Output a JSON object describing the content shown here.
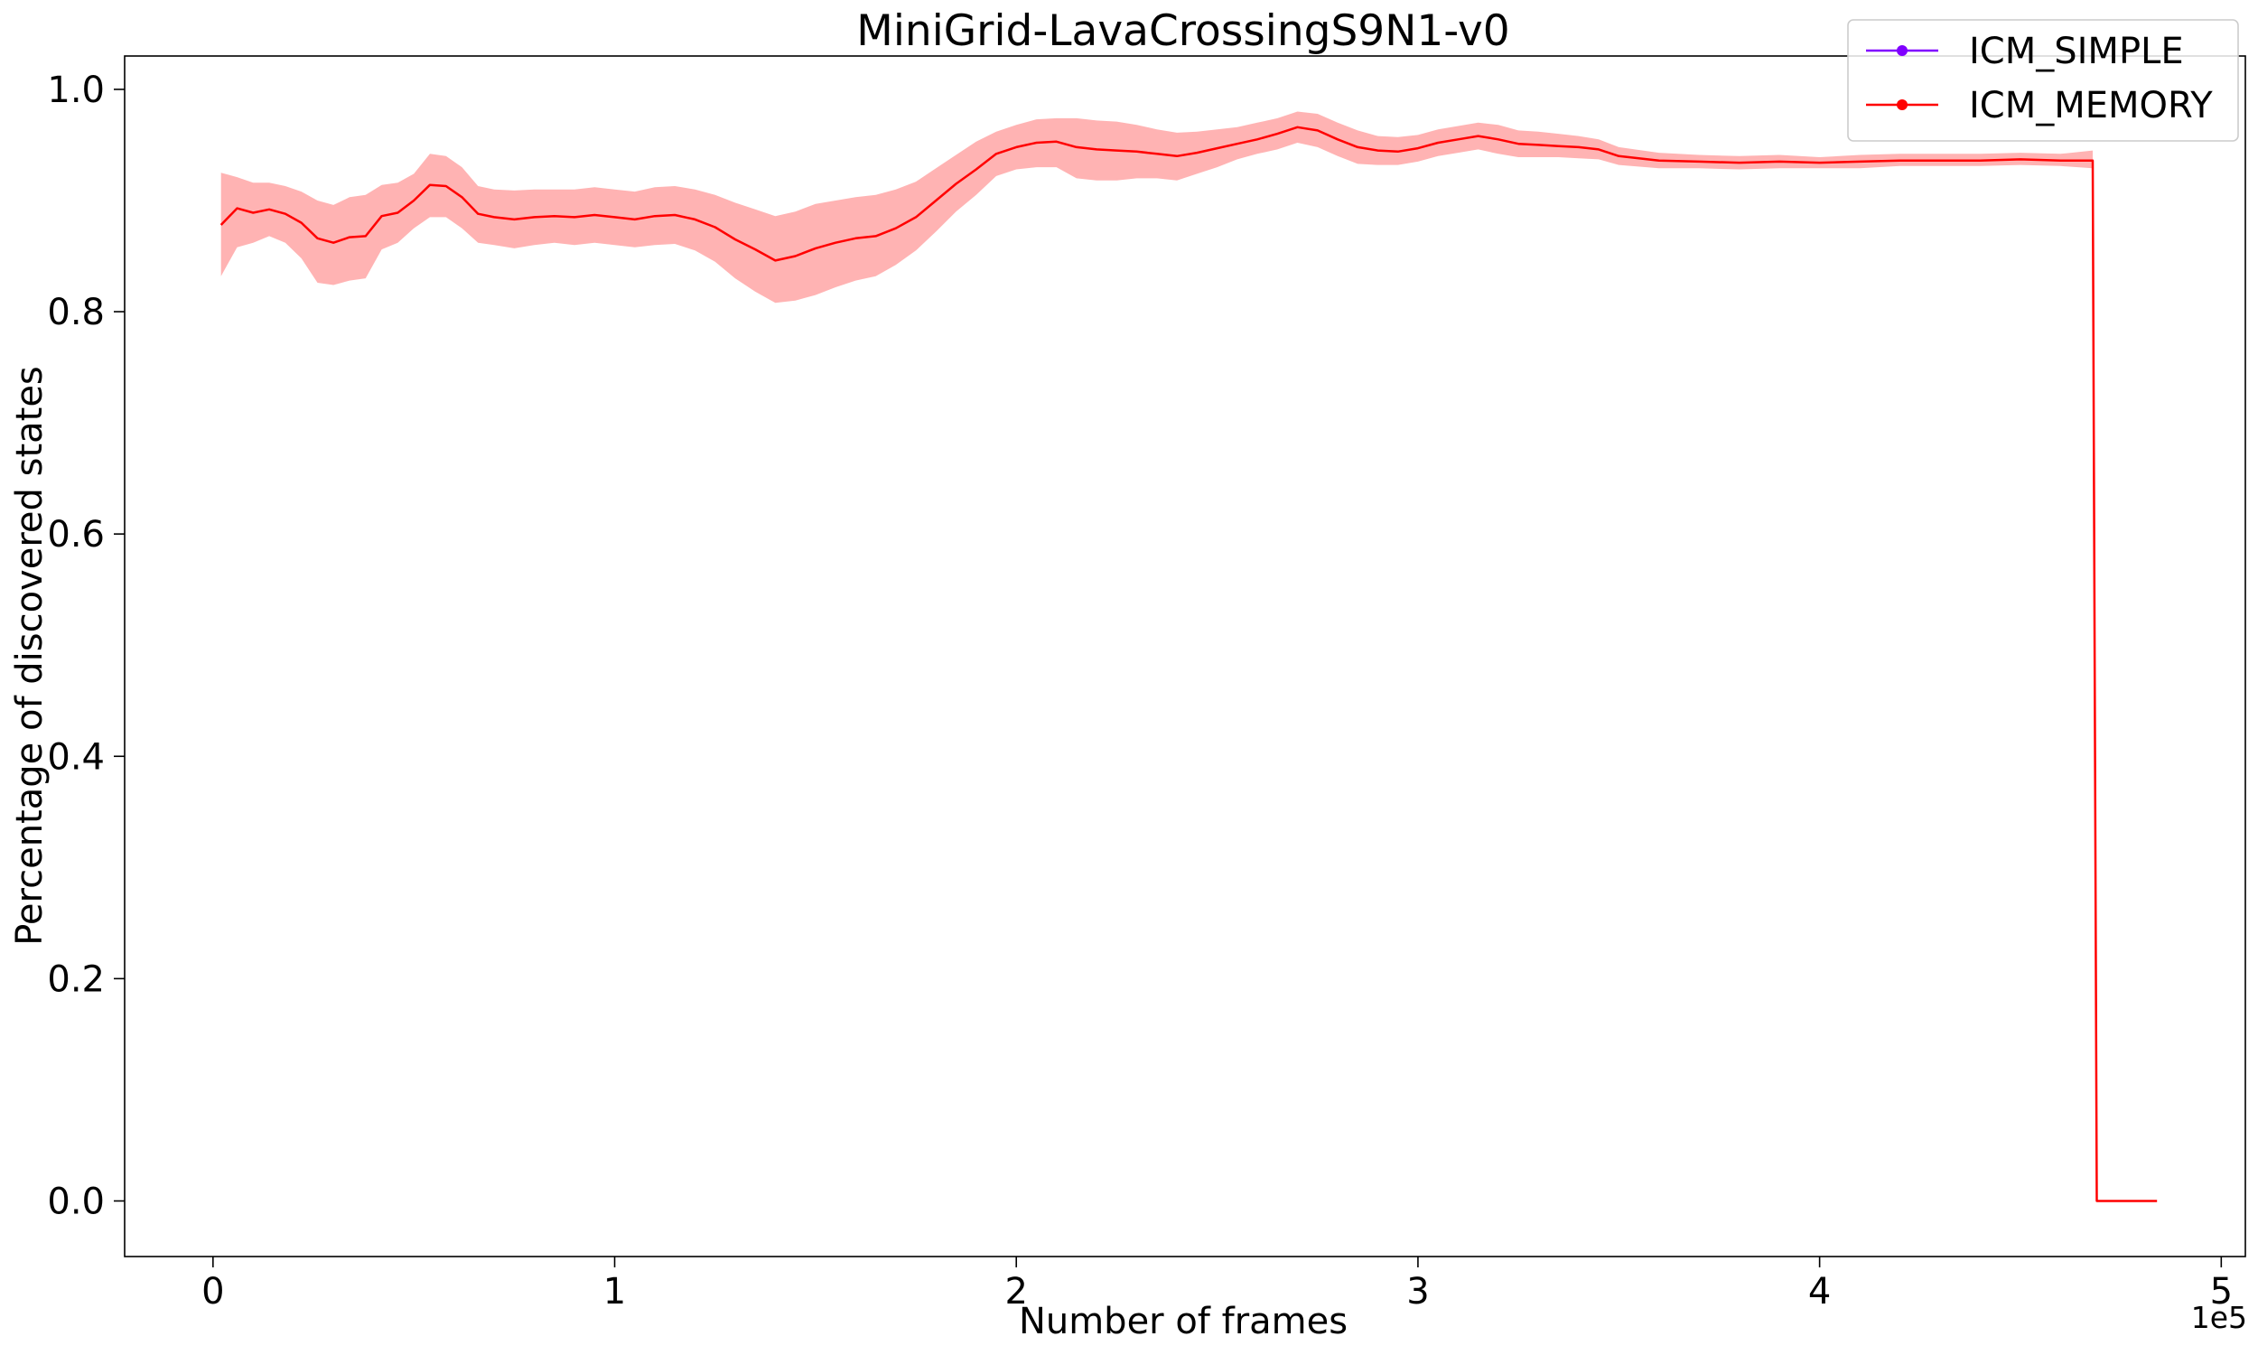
{
  "chart_data": {
    "type": "line",
    "title": "MiniGrid-LavaCrossingS9N1-v0",
    "xlabel": "Number of frames",
    "ylabel": "Percentage of discovered states",
    "x_offset_label": "1e5",
    "xlim": [
      -0.22,
      5.06
    ],
    "ylim": [
      -0.05,
      1.03
    ],
    "x_unit_multiplier": 100000,
    "x_ticks": [
      0,
      1,
      2,
      3,
      4,
      5
    ],
    "x_tick_labels": [
      "0",
      "1",
      "2",
      "3",
      "4",
      "5"
    ],
    "y_ticks": [
      0.0,
      0.2,
      0.4,
      0.6,
      0.8,
      1.0
    ],
    "y_tick_labels": [
      "0.0",
      "0.2",
      "0.4",
      "0.6",
      "0.8",
      "1.0"
    ],
    "grid": false,
    "legend_position": "top-right",
    "legend": [
      {
        "name": "ICM_SIMPLE",
        "color": "#8000ff"
      },
      {
        "name": "ICM_MEMORY",
        "color": "#ff0000"
      }
    ],
    "series": [
      {
        "name": "ICM_SIMPLE",
        "color": "#8000ff",
        "x": [],
        "y": []
      },
      {
        "name": "ICM_MEMORY",
        "color": "#ff0000",
        "band_color": "#ffb3b3",
        "x": [
          0.02,
          0.06,
          0.1,
          0.14,
          0.18,
          0.22,
          0.26,
          0.3,
          0.34,
          0.38,
          0.42,
          0.46,
          0.5,
          0.54,
          0.58,
          0.62,
          0.66,
          0.7,
          0.75,
          0.8,
          0.85,
          0.9,
          0.95,
          1.0,
          1.05,
          1.1,
          1.15,
          1.2,
          1.25,
          1.3,
          1.35,
          1.4,
          1.45,
          1.5,
          1.55,
          1.6,
          1.65,
          1.7,
          1.75,
          1.8,
          1.85,
          1.9,
          1.95,
          2.0,
          2.05,
          2.1,
          2.15,
          2.2,
          2.25,
          2.3,
          2.35,
          2.4,
          2.45,
          2.5,
          2.55,
          2.6,
          2.65,
          2.7,
          2.75,
          2.8,
          2.85,
          2.9,
          2.95,
          3.0,
          3.05,
          3.1,
          3.15,
          3.2,
          3.25,
          3.3,
          3.35,
          3.4,
          3.45,
          3.5,
          3.6,
          3.7,
          3.8,
          3.9,
          4.0,
          4.1,
          4.2,
          4.3,
          4.4,
          4.5,
          4.6,
          4.68,
          4.69,
          4.7,
          4.8,
          4.84
        ],
        "y": [
          0.878,
          0.893,
          0.889,
          0.892,
          0.888,
          0.88,
          0.866,
          0.862,
          0.867,
          0.868,
          0.886,
          0.889,
          0.9,
          0.914,
          0.913,
          0.903,
          0.888,
          0.885,
          0.883,
          0.885,
          0.886,
          0.885,
          0.887,
          0.885,
          0.883,
          0.886,
          0.887,
          0.883,
          0.876,
          0.865,
          0.856,
          0.846,
          0.85,
          0.857,
          0.862,
          0.866,
          0.868,
          0.875,
          0.885,
          0.9,
          0.915,
          0.928,
          0.942,
          0.948,
          0.952,
          0.953,
          0.948,
          0.946,
          0.945,
          0.944,
          0.942,
          0.94,
          0.943,
          0.947,
          0.951,
          0.955,
          0.96,
          0.966,
          0.963,
          0.955,
          0.948,
          0.945,
          0.944,
          0.947,
          0.952,
          0.955,
          0.958,
          0.955,
          0.951,
          0.95,
          0.949,
          0.948,
          0.946,
          0.94,
          0.936,
          0.935,
          0.934,
          0.935,
          0.934,
          0.935,
          0.936,
          0.936,
          0.936,
          0.937,
          0.936,
          0.936,
          0.0,
          0.0,
          0.0,
          0.0
        ],
        "y_lower": [
          0.832,
          0.858,
          0.862,
          0.868,
          0.862,
          0.848,
          0.826,
          0.824,
          0.828,
          0.83,
          0.856,
          0.862,
          0.875,
          0.885,
          0.885,
          0.875,
          0.862,
          0.86,
          0.857,
          0.86,
          0.862,
          0.86,
          0.862,
          0.86,
          0.858,
          0.86,
          0.861,
          0.855,
          0.845,
          0.83,
          0.818,
          0.808,
          0.81,
          0.815,
          0.822,
          0.828,
          0.832,
          0.842,
          0.855,
          0.872,
          0.89,
          0.905,
          0.922,
          0.928,
          0.93,
          0.93,
          0.92,
          0.918,
          0.918,
          0.92,
          0.92,
          0.918,
          0.924,
          0.93,
          0.937,
          0.942,
          0.946,
          0.952,
          0.948,
          0.94,
          0.933,
          0.932,
          0.932,
          0.935,
          0.94,
          0.943,
          0.946,
          0.942,
          0.939,
          0.939,
          0.939,
          0.938,
          0.937,
          0.932,
          0.929,
          0.929,
          0.928,
          0.929,
          0.929,
          0.929,
          0.931,
          0.931,
          0.931,
          0.932,
          0.931,
          0.929,
          0.0,
          0.0,
          0.0,
          0.0
        ],
        "y_upper": [
          0.925,
          0.921,
          0.916,
          0.916,
          0.913,
          0.908,
          0.9,
          0.896,
          0.903,
          0.905,
          0.914,
          0.916,
          0.924,
          0.942,
          0.94,
          0.93,
          0.913,
          0.91,
          0.909,
          0.91,
          0.91,
          0.91,
          0.912,
          0.91,
          0.908,
          0.912,
          0.913,
          0.91,
          0.905,
          0.898,
          0.892,
          0.886,
          0.89,
          0.897,
          0.9,
          0.903,
          0.905,
          0.91,
          0.917,
          0.929,
          0.941,
          0.953,
          0.962,
          0.968,
          0.973,
          0.974,
          0.974,
          0.972,
          0.971,
          0.968,
          0.964,
          0.961,
          0.962,
          0.964,
          0.966,
          0.97,
          0.974,
          0.98,
          0.978,
          0.97,
          0.963,
          0.958,
          0.957,
          0.959,
          0.964,
          0.967,
          0.97,
          0.968,
          0.963,
          0.962,
          0.96,
          0.958,
          0.955,
          0.948,
          0.943,
          0.941,
          0.94,
          0.941,
          0.939,
          0.941,
          0.942,
          0.942,
          0.942,
          0.943,
          0.942,
          0.945,
          0.0,
          0.0,
          0.0,
          0.0
        ]
      }
    ]
  }
}
